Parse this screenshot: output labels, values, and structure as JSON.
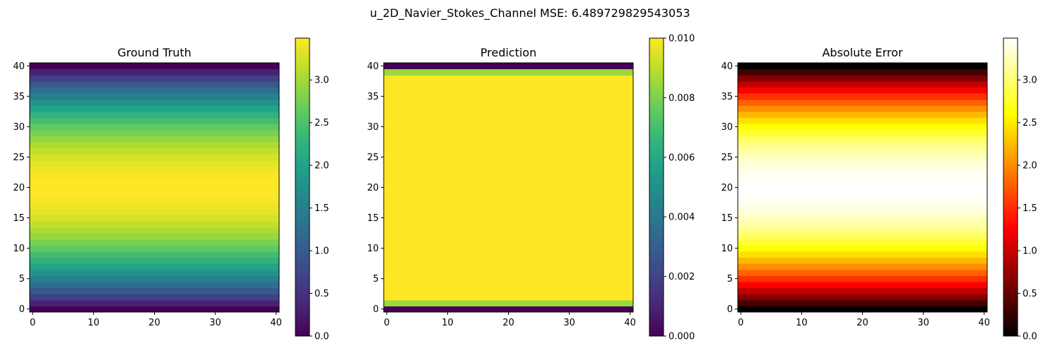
{
  "figure": {
    "suptitle": "u_2D_Navier_Stokes_Channel MSE: 6.489729829543053"
  },
  "chart_data": [
    {
      "type": "heatmap",
      "title": "Ground Truth",
      "colormap": "viridis",
      "grid": false,
      "xlim": [
        -0.5,
        40.5
      ],
      "ylim": [
        -0.5,
        40.5
      ],
      "xticks": [
        "0",
        "10",
        "20",
        "30",
        "40"
      ],
      "yticks": [
        "0",
        "5",
        "10",
        "15",
        "20",
        "25",
        "30",
        "35",
        "40"
      ],
      "colorbar": {
        "range": [
          0,
          3.49
        ],
        "ticks": [
          "0.0",
          "0.5",
          "1.0",
          "1.5",
          "2.0",
          "2.5",
          "3.0"
        ]
      },
      "profile": {
        "kind": "parabolic_rows",
        "rows": 41,
        "max": 3.49
      }
    },
    {
      "type": "heatmap",
      "title": "Prediction",
      "colormap": "viridis",
      "grid": false,
      "xlim": [
        -0.5,
        40.5
      ],
      "ylim": [
        -0.5,
        40.5
      ],
      "xticks": [
        "0",
        "10",
        "20",
        "30",
        "40"
      ],
      "yticks": [
        "0",
        "5",
        "10",
        "15",
        "20",
        "25",
        "30",
        "35",
        "40"
      ],
      "colorbar": {
        "range": [
          0,
          0.01
        ],
        "ticks": [
          "0.000",
          "0.002",
          "0.004",
          "0.006",
          "0.008",
          "0.010"
        ]
      },
      "row_values": {
        "0": 0.0,
        "1": 0.0085,
        "39": 0.0085,
        "40": 0.0,
        "default": 0.01
      }
    },
    {
      "type": "heatmap",
      "title": "Absolute Error",
      "colormap": "hot",
      "grid": false,
      "xlim": [
        -0.5,
        40.5
      ],
      "ylim": [
        -0.5,
        40.5
      ],
      "xticks": [
        "0",
        "10",
        "20",
        "30",
        "40"
      ],
      "yticks": [
        "0",
        "5",
        "10",
        "15",
        "20",
        "25",
        "30",
        "35",
        "40"
      ],
      "colorbar": {
        "range": [
          0,
          3.49
        ],
        "ticks": [
          "0.0",
          "0.5",
          "1.0",
          "1.5",
          "2.0",
          "2.5",
          "3.0"
        ]
      },
      "profile": {
        "kind": "parabolic_rows",
        "rows": 41,
        "max": 3.49
      }
    }
  ]
}
